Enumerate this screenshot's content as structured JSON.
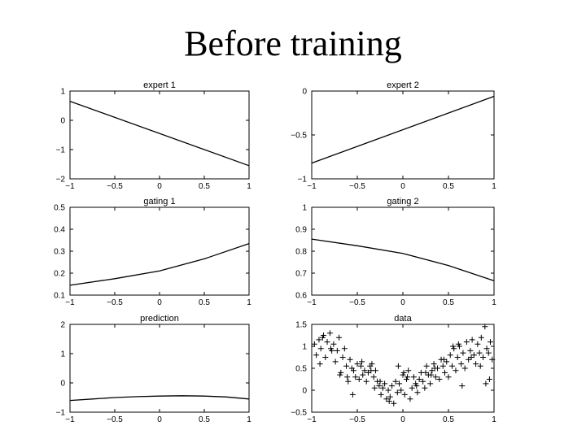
{
  "slide": {
    "title": "Before training"
  },
  "chart_data": [
    {
      "id": "expert1",
      "type": "line",
      "title": "expert 1",
      "xlim": [
        -1,
        1
      ],
      "ylim": [
        -2,
        1
      ],
      "xticks": [
        "−1",
        "−0.5",
        "0",
        "0.5",
        "1"
      ],
      "yticks": [
        "1",
        "0",
        "−1",
        "−2"
      ],
      "ytick_values": [
        1,
        0,
        -1,
        -2
      ],
      "series": [
        {
          "x": [
            -1,
            1
          ],
          "y": [
            0.65,
            -1.55
          ]
        }
      ]
    },
    {
      "id": "expert2",
      "type": "line",
      "title": "expert 2",
      "xlim": [
        -1,
        1
      ],
      "ylim": [
        -1,
        0
      ],
      "xticks": [
        "−1",
        "−0.5",
        "0",
        "0.5",
        "1"
      ],
      "yticks": [
        "0",
        "−0.5",
        "−1"
      ],
      "ytick_values": [
        0,
        -0.5,
        -1
      ],
      "series": [
        {
          "x": [
            -1,
            1
          ],
          "y": [
            -0.82,
            -0.06
          ]
        }
      ]
    },
    {
      "id": "gating1",
      "type": "line",
      "title": "gating 1",
      "xlim": [
        -1,
        1
      ],
      "ylim": [
        0.1,
        0.5
      ],
      "xticks": [
        "−1",
        "−0.5",
        "0",
        "0.5",
        "1"
      ],
      "yticks": [
        "0.5",
        "0.4",
        "0.3",
        "0.2",
        "0.1"
      ],
      "ytick_values": [
        0.5,
        0.4,
        0.3,
        0.2,
        0.1
      ],
      "series": [
        {
          "x": [
            -1,
            -0.5,
            0,
            0.5,
            1
          ],
          "y": [
            0.145,
            0.175,
            0.21,
            0.265,
            0.335
          ]
        }
      ]
    },
    {
      "id": "gating2",
      "type": "line",
      "title": "gating 2",
      "xlim": [
        -1,
        1
      ],
      "ylim": [
        0.6,
        1
      ],
      "xticks": [
        "−1",
        "−0.5",
        "0",
        "0.5",
        "1"
      ],
      "yticks": [
        "1",
        "0.9",
        "0.8",
        "0.7",
        "0.6"
      ],
      "ytick_values": [
        1,
        0.9,
        0.8,
        0.7,
        0.6
      ],
      "series": [
        {
          "x": [
            -1,
            -0.5,
            0,
            0.5,
            1
          ],
          "y": [
            0.855,
            0.825,
            0.79,
            0.735,
            0.665
          ]
        }
      ]
    },
    {
      "id": "prediction",
      "type": "line",
      "title": "prediction",
      "xlim": [
        -1,
        1
      ],
      "ylim": [
        -1,
        2
      ],
      "xticks": [
        "−1",
        "−0.5",
        "0",
        "0.5",
        "1"
      ],
      "yticks": [
        "2",
        "1",
        "0",
        "−1"
      ],
      "ytick_values": [
        2,
        1,
        0,
        -1
      ],
      "series": [
        {
          "x": [
            -1,
            -0.75,
            -0.5,
            -0.25,
            0,
            0.25,
            0.5,
            0.75,
            1
          ],
          "y": [
            -0.6,
            -0.55,
            -0.5,
            -0.47,
            -0.45,
            -0.44,
            -0.45,
            -0.48,
            -0.55
          ]
        }
      ]
    },
    {
      "id": "data",
      "type": "scatter",
      "title": "data",
      "xlim": [
        -1,
        1
      ],
      "ylim": [
        -0.5,
        1.5
      ],
      "xticks": [
        "−1",
        "−0.5",
        "0",
        "0.5",
        "1"
      ],
      "yticks": [
        "1.5",
        "1",
        "0.5",
        "0",
        "−0.5"
      ],
      "ytick_values": [
        1.5,
        1,
        0.5,
        0,
        -0.5
      ],
      "series": [
        {
          "marker": "+",
          "x": [
            -0.97,
            -0.95,
            -0.92,
            -0.9,
            -0.88,
            -0.85,
            -0.83,
            -0.8,
            -0.78,
            -0.76,
            -0.74,
            -0.72,
            -0.7,
            -0.68,
            -0.66,
            -0.64,
            -0.62,
            -0.6,
            -0.58,
            -0.56,
            -0.54,
            -0.52,
            -0.5,
            -0.48,
            -0.46,
            -0.44,
            -0.42,
            -0.4,
            -0.38,
            -0.36,
            -0.34,
            -0.32,
            -0.3,
            -0.28,
            -0.26,
            -0.24,
            -0.22,
            -0.2,
            -0.18,
            -0.16,
            -0.14,
            -0.12,
            -0.1,
            -0.08,
            -0.06,
            -0.04,
            -0.02,
            0,
            0.02,
            0.04,
            0.06,
            0.08,
            0.1,
            0.12,
            0.14,
            0.16,
            0.18,
            0.2,
            0.22,
            0.24,
            0.26,
            0.28,
            0.3,
            0.32,
            0.34,
            0.36,
            0.38,
            0.4,
            0.42,
            0.44,
            0.46,
            0.48,
            0.5,
            0.52,
            0.54,
            0.56,
            0.58,
            0.6,
            0.62,
            0.64,
            0.66,
            0.68,
            0.7,
            0.72,
            0.74,
            0.76,
            0.78,
            0.8,
            0.82,
            0.84,
            0.86,
            0.88,
            0.9,
            0.92,
            0.94,
            0.96,
            0.98,
            -0.87,
            -0.79,
            -0.69,
            -0.55,
            -0.45,
            -0.35,
            -0.25,
            -0.15,
            -0.05,
            0.05,
            0.15,
            0.25,
            0.35,
            0.45,
            0.55,
            0.65,
            0.75,
            0.85,
            0.95,
            -0.91,
            -0.61,
            -0.31,
            0.01,
            0.31,
            0.61,
            0.91
          ],
          "y": [
            1.05,
            0.8,
            1.15,
            0.95,
            1.2,
            0.75,
            1.1,
            1.3,
            0.9,
            1.05,
            0.65,
            0.9,
            1.2,
            0.4,
            0.75,
            0.95,
            0.55,
            0.2,
            0.7,
            0.5,
            0.45,
            0.3,
            0.6,
            0.25,
            0.55,
            0.35,
            0.45,
            0.2,
            0.4,
            0.55,
            0.6,
            0.3,
            0.45,
            0.2,
            0.1,
            -0.1,
            0.05,
            0.15,
            -0.2,
            0.0,
            -0.15,
            0.1,
            -0.3,
            0.2,
            -0.05,
            0.15,
            0.0,
            0.35,
            -0.1,
            0.25,
            0.45,
            -0.2,
            0.05,
            0.3,
            0.15,
            -0.05,
            0.25,
            0.4,
            0.2,
            0.05,
            0.55,
            0.35,
            0.15,
            0.45,
            0.6,
            0.3,
            0.5,
            0.25,
            0.7,
            0.55,
            0.4,
            0.65,
            0.3,
            0.8,
            0.55,
            0.95,
            0.45,
            0.75,
            1.0,
            0.6,
            0.85,
            0.5,
            1.1,
            0.7,
            0.9,
            1.15,
            0.8,
            0.6,
            1.05,
            0.85,
            1.2,
            0.75,
            1.45,
            0.95,
            0.85,
            1.1,
            0.7,
            1.25,
            0.95,
            0.35,
            -0.1,
            0.65,
            0.45,
            0.2,
            -0.25,
            0.55,
            0.3,
            0.1,
            0.4,
            0.5,
            0.7,
            1.0,
            0.1,
            0.75,
            0.55,
            0.25,
            0.6,
            0.3,
            0.05,
            0.4,
            0.35,
            1.05,
            0.15
          ]
        }
      ]
    }
  ]
}
